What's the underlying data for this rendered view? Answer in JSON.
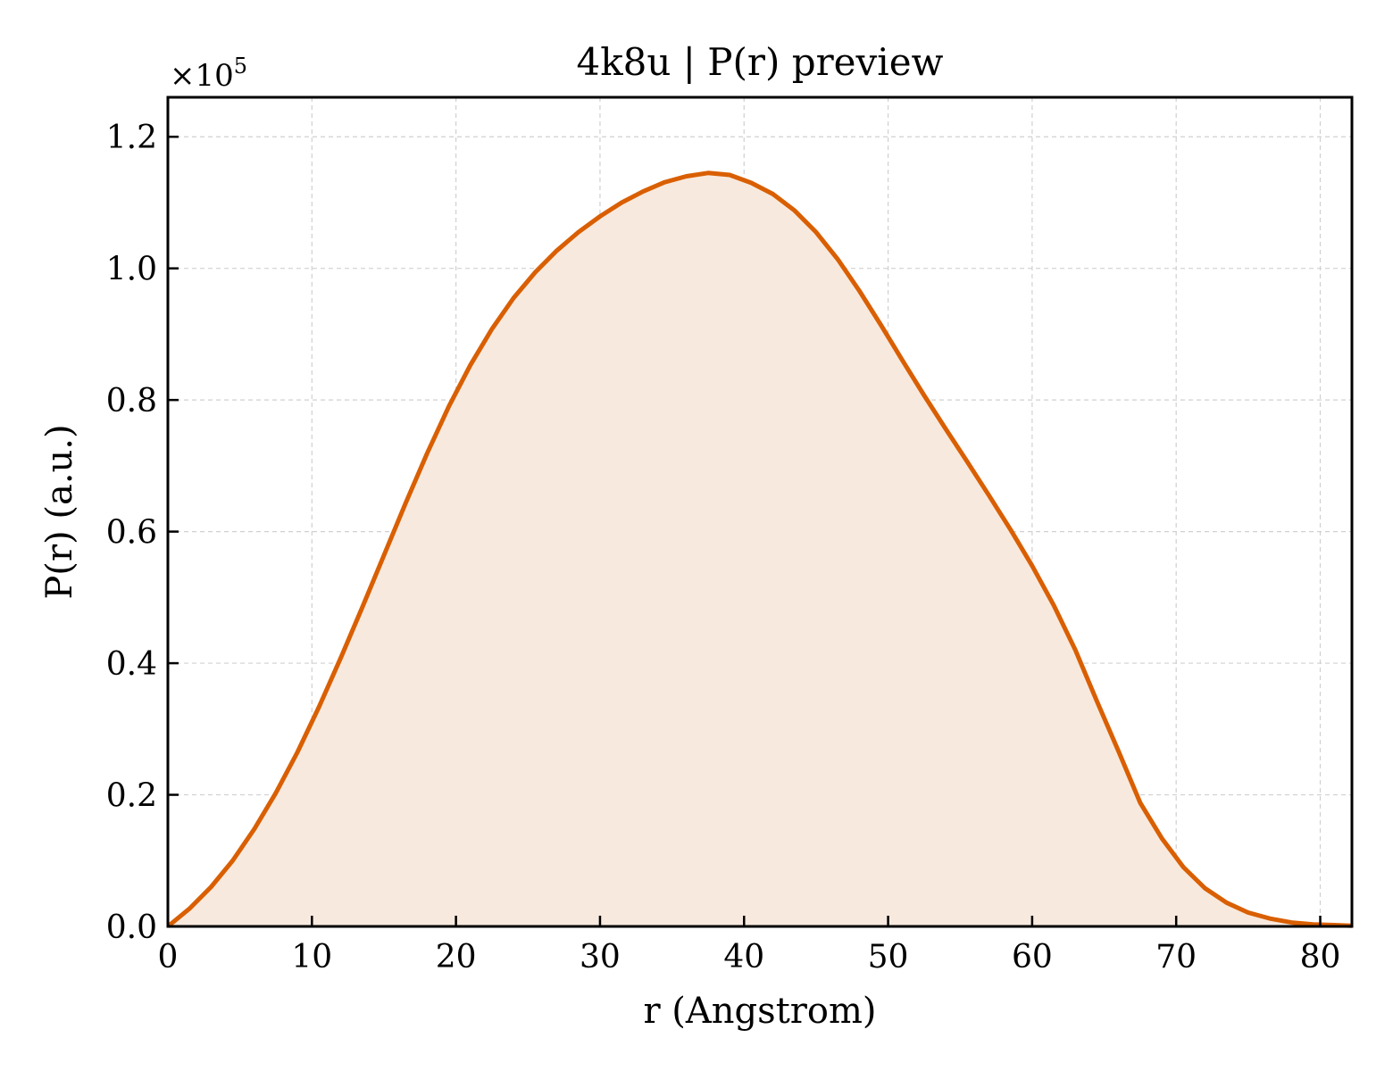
{
  "chart_data": {
    "type": "area",
    "title": "4k8u | P(r) preview",
    "xlabel": "r (Angstrom)",
    "ylabel": "P(r) (a.u.)",
    "y_multiplier_base": "×10",
    "y_multiplier_exp": "5",
    "xlim": [
      0,
      82.2
    ],
    "ylim": [
      0,
      1.26
    ],
    "xticks": [
      0,
      10,
      20,
      30,
      40,
      50,
      60,
      70,
      80
    ],
    "xtick_labels": [
      "0",
      "10",
      "20",
      "30",
      "40",
      "50",
      "60",
      "70",
      "80"
    ],
    "yticks": [
      0.0,
      0.2,
      0.4,
      0.6,
      0.8,
      1.0,
      1.2
    ],
    "ytick_labels": [
      "0.0",
      "0.2",
      "0.4",
      "0.6",
      "0.8",
      "1.0",
      "1.2"
    ],
    "grid": true,
    "colors": {
      "line": "#d95f02",
      "fill": "#f8e9de",
      "grid": "#d0d0d0",
      "axes": "#000000"
    },
    "series": [
      {
        "x": [
          0,
          1.5,
          3,
          4.5,
          6,
          7.5,
          9,
          10.5,
          12,
          13.5,
          15,
          16.5,
          18,
          19.5,
          21,
          22.5,
          24,
          25.5,
          27,
          28.5,
          30,
          31.5,
          33,
          34.5,
          36,
          37.5,
          39,
          40.5,
          42,
          43.5,
          45,
          46.5,
          48,
          49.5,
          51,
          52.5,
          54,
          55.5,
          57,
          58.5,
          60,
          61.5,
          63,
          64.5,
          66,
          67.5,
          69,
          70.5,
          72,
          73.5,
          75,
          76.5,
          78,
          79.5,
          81,
          82.2
        ],
        "y": [
          0.0,
          0.027,
          0.06,
          0.1,
          0.148,
          0.203,
          0.265,
          0.334,
          0.408,
          0.485,
          0.564,
          0.643,
          0.719,
          0.79,
          0.853,
          0.908,
          0.955,
          0.994,
          1.027,
          1.055,
          1.079,
          1.1,
          1.117,
          1.131,
          1.14,
          1.145,
          1.142,
          1.13,
          1.113,
          1.088,
          1.055,
          1.014,
          0.966,
          0.914,
          0.86,
          0.807,
          0.756,
          0.706,
          0.655,
          0.603,
          0.548,
          0.488,
          0.42,
          0.342,
          0.266,
          0.188,
          0.134,
          0.09,
          0.058,
          0.036,
          0.021,
          0.012,
          0.006,
          0.003,
          0.002,
          0.001
        ]
      }
    ]
  }
}
